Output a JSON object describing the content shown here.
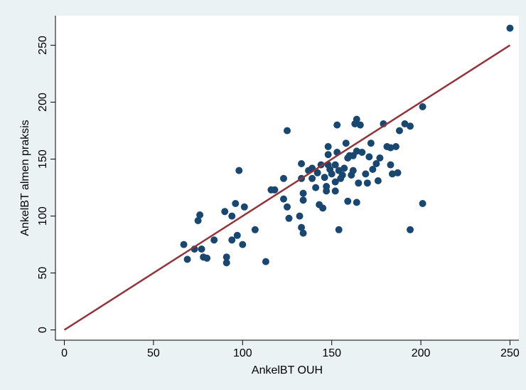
{
  "chart_data": {
    "type": "scatter",
    "x_label": "AnkelBT OUH",
    "y_label": "AnkelBT almen praksis",
    "xlim": [
      -5,
      255
    ],
    "ylim": [
      -9,
      276
    ],
    "xticks": [
      0,
      50,
      100,
      150,
      200,
      250
    ],
    "yticks": [
      0,
      50,
      100,
      150,
      200,
      250
    ],
    "series": [
      {
        "type": "scatter",
        "color": "#1a476f",
        "x": [
          250,
          67,
          69,
          73,
          76,
          75,
          77,
          78,
          80,
          84,
          90,
          91,
          91,
          94,
          94,
          96,
          97,
          98,
          100,
          101,
          107,
          113,
          116,
          118,
          123,
          123,
          125,
          125,
          126,
          132,
          133,
          133,
          134,
          134,
          134,
          133,
          137,
          139,
          139,
          141,
          142,
          143,
          144,
          145,
          146,
          147,
          147,
          148,
          148,
          148,
          149,
          150,
          152,
          152,
          152,
          153,
          154,
          153,
          154,
          155,
          156,
          157,
          158,
          159,
          159,
          160,
          161,
          162,
          162,
          163,
          164,
          164,
          164,
          165,
          166,
          167,
          169,
          170,
          171,
          172,
          173,
          175,
          176,
          177,
          179,
          181,
          183,
          183,
          184,
          186,
          187,
          188,
          191,
          194,
          194,
          201,
          201
        ],
        "values": [
          265,
          75,
          62,
          71,
          101,
          96,
          71,
          64,
          63,
          79,
          104,
          64,
          59,
          100,
          79,
          111,
          83,
          140,
          75,
          108,
          88,
          60,
          123,
          123,
          133,
          115,
          175,
          108,
          98,
          100,
          146,
          90,
          85,
          120,
          114,
          133,
          140,
          133,
          142,
          125,
          138,
          110,
          145,
          107,
          134,
          122,
          126,
          145,
          154,
          161,
          141,
          137,
          145,
          122,
          130,
          156,
          88,
          180,
          140,
          133,
          136,
          142,
          164,
          151,
          113,
          153,
          136,
          153,
          140,
          181,
          157,
          112,
          185,
          129,
          180,
          156,
          137,
          129,
          152,
          164,
          141,
          146,
          131,
          151,
          181,
          161,
          145,
          160,
          137,
          161,
          138,
          175,
          181,
          179,
          88,
          196,
          111
        ]
      },
      {
        "type": "line",
        "color": "#90353b",
        "x": [
          0,
          250
        ],
        "values": [
          0,
          250
        ]
      }
    ]
  }
}
